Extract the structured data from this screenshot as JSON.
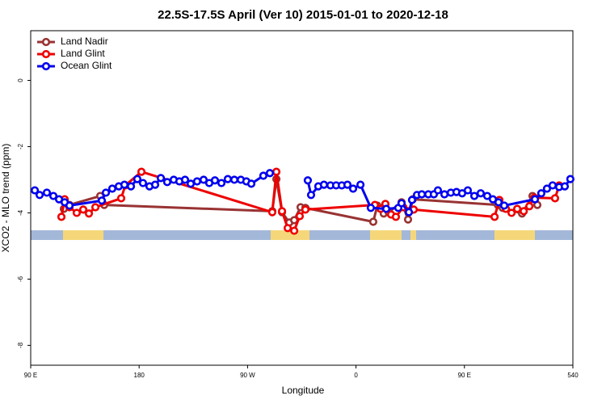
{
  "chart_data": {
    "type": "line",
    "title": "22.5S-17.5S April (Ver 10)   2015-01-01 to 2020-12-18",
    "x_label": "Longitude",
    "y_label": "XCO2 - MLO trend (ppm)",
    "xlim": [
      90,
      540
    ],
    "xticks": [
      {
        "value": 90,
        "label": "90 E"
      },
      180,
      {
        "value": 270,
        "label": "90 W"
      },
      {
        "value": 360,
        "label": "0"
      },
      {
        "value": 450,
        "label": "90 E"
      },
      540
    ],
    "ylim": [
      -8.6,
      1.5
    ],
    "yticks": [
      0,
      -2,
      -4,
      -6,
      -8
    ],
    "legend": "top-left",
    "series": [
      {
        "name": "Land Nadir",
        "color": "#993333",
        "x": [
          117.5,
          122.2,
          147.7,
          151,
          290.5,
          293.9,
          298.6,
          304.6,
          308.7,
          314,
          318,
          374.3,
          377.7,
          383,
          387.1,
          397.8,
          403.2,
          407.2,
          477.7,
          481.7,
          497.8,
          506.5,
          510.5
        ],
        "values": [
          -3.88,
          -3.76,
          -3.49,
          -3.76,
          -3.95,
          -2.98,
          -3.98,
          -4.29,
          -4.22,
          -3.83,
          -3.85,
          -4.27,
          -3.78,
          -4.02,
          -3.98,
          -3.68,
          -4.2,
          -3.59,
          -3.76,
          -3.85,
          -4.02,
          -3.49,
          -3.76
        ]
      },
      {
        "name": "Land Glint",
        "color": "#ee0000",
        "x": [
          115.5,
          118.2,
          122.2,
          128.2,
          133.6,
          138.3,
          143.7,
          165.1,
          168.5,
          181.9,
          290.5,
          293.9,
          298.6,
          303.3,
          308.7,
          313.3,
          318,
          375.7,
          380.4,
          384.4,
          389.1,
          393.1,
          399.2,
          407.9,
          475,
          479,
          484.4,
          489.1,
          493.8,
          499.2,
          503.9,
          508,
          525.2,
          528.6
        ],
        "values": [
          -4.12,
          -3.59,
          -3.83,
          -4.0,
          -3.9,
          -4.02,
          -3.83,
          -3.56,
          -3.17,
          -2.76,
          -3.98,
          -2.76,
          -3.95,
          -4.46,
          -4.54,
          -4.1,
          -3.9,
          -3.76,
          -3.88,
          -3.73,
          -4.05,
          -4.12,
          -3.83,
          -3.9,
          -4.12,
          -3.61,
          -3.88,
          -4.0,
          -3.88,
          -3.95,
          -3.8,
          -3.54,
          -3.56,
          -3.17
        ]
      },
      {
        "name": "Ocean Glint",
        "color": "#0000ee",
        "x": [
          93.4,
          97.4,
          103.4,
          108.8,
          113.5,
          118.2,
          122.2,
          149,
          152.4,
          157.7,
          163.1,
          167.8,
          173.2,
          178.5,
          183.2,
          188.6,
          193.3,
          198,
          203.3,
          208.7,
          213.4,
          218.1,
          222.8,
          228.1,
          233.5,
          238.2,
          242.9,
          248.3,
          253.6,
          259,
          264.4,
          269,
          273.1,
          283.1,
          288.5,
          304,
          320,
          322.7,
          328.7,
          333.4,
          338.8,
          343.5,
          348.2,
          352.9,
          357.6,
          363.7,
          372.3,
          385.1,
          395.1,
          397.8,
          403.9,
          406.5,
          410.6,
          414.6,
          420,
          424.6,
          428,
          433.4,
          438.7,
          443.4,
          448.1,
          452.8,
          458.2,
          463.5,
          468.9,
          473.6,
          478.3,
          483,
          508.5,
          513.8,
          518.5,
          523.2,
          528.6,
          533.3,
          537.9
        ],
        "values": [
          -3.32,
          -3.46,
          -3.39,
          -3.49,
          -3.59,
          -3.68,
          -3.78,
          -3.63,
          -3.39,
          -3.27,
          -3.2,
          -3.15,
          -3.2,
          -2.98,
          -3.1,
          -3.2,
          -3.15,
          -2.95,
          -3.07,
          -3.0,
          -3.05,
          -3.0,
          -3.12,
          -3.05,
          -3.0,
          -3.1,
          -3.02,
          -3.1,
          -2.98,
          -3.0,
          -3.0,
          -3.05,
          -3.12,
          -2.88,
          -2.8,
          null,
          -3.02,
          -3.46,
          -3.2,
          -3.15,
          -3.17,
          -3.17,
          -3.17,
          -3.15,
          -3.27,
          -3.15,
          -3.85,
          -3.88,
          -3.85,
          -3.71,
          -3.98,
          -3.61,
          -3.46,
          -3.44,
          -3.44,
          -3.44,
          -3.32,
          -3.44,
          -3.39,
          -3.37,
          -3.41,
          -3.32,
          -3.49,
          -3.41,
          -3.49,
          -3.59,
          -3.68,
          -3.78,
          -3.59,
          -3.41,
          -3.27,
          -3.17,
          -3.22,
          -3.2,
          -2.98
        ]
      }
    ]
  }
}
